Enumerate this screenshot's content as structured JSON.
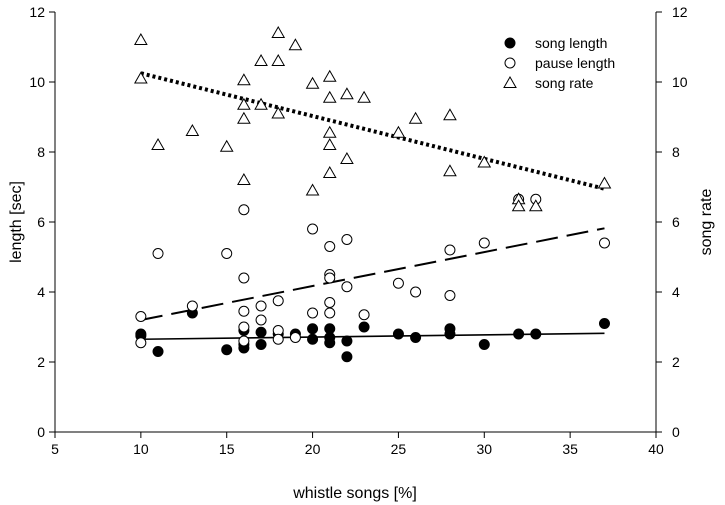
{
  "chart_data": {
    "type": "scatter",
    "title": "",
    "xlabel": "whistle songs [%]",
    "ylabel_left": "length [sec]",
    "ylabel_right": "song rate",
    "xlim": [
      5,
      40
    ],
    "ylim_left": [
      0,
      12
    ],
    "ylim_right": [
      0,
      12
    ],
    "xticks": [
      "5",
      "10",
      "15",
      "20",
      "25",
      "30",
      "35",
      "40"
    ],
    "yticks_left": [
      "0",
      "2",
      "4",
      "6",
      "8",
      "10",
      "12"
    ],
    "yticks_right": [
      "0",
      "2",
      "4",
      "6",
      "8",
      "10",
      "12"
    ],
    "grid": false,
    "legend_position": "top-right",
    "series": [
      {
        "name": "song length",
        "marker": "filled-circle",
        "axis": "left",
        "points": [
          [
            10,
            2.8
          ],
          [
            10,
            2.75
          ],
          [
            11,
            2.3
          ],
          [
            13,
            3.4
          ],
          [
            15,
            2.35
          ],
          [
            16,
            2.4
          ],
          [
            16,
            2.5
          ],
          [
            16,
            2.9
          ],
          [
            17,
            2.85
          ],
          [
            17,
            2.5
          ],
          [
            18,
            2.8
          ],
          [
            19,
            2.8
          ],
          [
            20,
            2.95
          ],
          [
            20,
            2.65
          ],
          [
            21,
            2.95
          ],
          [
            21,
            2.7
          ],
          [
            21,
            2.55
          ],
          [
            22,
            2.6
          ],
          [
            22,
            2.15
          ],
          [
            23,
            3.0
          ],
          [
            25,
            2.8
          ],
          [
            26,
            2.7
          ],
          [
            28,
            2.95
          ],
          [
            28,
            2.8
          ],
          [
            30,
            2.5
          ],
          [
            32,
            2.8
          ],
          [
            33,
            2.8
          ],
          [
            37,
            3.1
          ]
        ],
        "trend": {
          "style": "solid",
          "x": [
            10,
            37
          ],
          "y": [
            2.65,
            2.82
          ]
        }
      },
      {
        "name": "pause length",
        "marker": "open-circle",
        "axis": "left",
        "points": [
          [
            10,
            3.3
          ],
          [
            10,
            2.55
          ],
          [
            11,
            5.1
          ],
          [
            13,
            3.6
          ],
          [
            15,
            5.1
          ],
          [
            16,
            6.35
          ],
          [
            16,
            4.4
          ],
          [
            16,
            3.45
          ],
          [
            16,
            3.0
          ],
          [
            16,
            2.6
          ],
          [
            17,
            3.6
          ],
          [
            17,
            3.2
          ],
          [
            18,
            3.75
          ],
          [
            18,
            2.9
          ],
          [
            18,
            2.65
          ],
          [
            19,
            2.7
          ],
          [
            20,
            5.8
          ],
          [
            20,
            3.4
          ],
          [
            21,
            5.3
          ],
          [
            21,
            4.5
          ],
          [
            21,
            4.4
          ],
          [
            21,
            3.7
          ],
          [
            21,
            3.4
          ],
          [
            22,
            5.5
          ],
          [
            22,
            4.15
          ],
          [
            23,
            3.35
          ],
          [
            25,
            4.25
          ],
          [
            26,
            4.0
          ],
          [
            28,
            5.2
          ],
          [
            28,
            3.9
          ],
          [
            30,
            5.4
          ],
          [
            32,
            6.65
          ],
          [
            33,
            6.65
          ],
          [
            37,
            5.4
          ]
        ],
        "trend": {
          "style": "dashed",
          "x": [
            10,
            37
          ],
          "y": [
            3.2,
            5.82
          ]
        }
      },
      {
        "name": "song rate",
        "marker": "open-triangle",
        "axis": "right",
        "points": [
          [
            10,
            11.2
          ],
          [
            10,
            10.1
          ],
          [
            11,
            8.2
          ],
          [
            13,
            8.6
          ],
          [
            15,
            8.15
          ],
          [
            16,
            10.05
          ],
          [
            16,
            9.35
          ],
          [
            16,
            8.95
          ],
          [
            16,
            7.2
          ],
          [
            17,
            10.6
          ],
          [
            17,
            9.35
          ],
          [
            18,
            11.4
          ],
          [
            18,
            10.6
          ],
          [
            18,
            9.1
          ],
          [
            19,
            11.05
          ],
          [
            20,
            9.95
          ],
          [
            20,
            6.9
          ],
          [
            21,
            10.15
          ],
          [
            21,
            9.55
          ],
          [
            21,
            8.55
          ],
          [
            21,
            8.2
          ],
          [
            21,
            7.4
          ],
          [
            22,
            9.65
          ],
          [
            22,
            7.8
          ],
          [
            23,
            9.55
          ],
          [
            25,
            8.55
          ],
          [
            26,
            8.95
          ],
          [
            28,
            9.05
          ],
          [
            28,
            7.45
          ],
          [
            30,
            7.7
          ],
          [
            32,
            6.65
          ],
          [
            32,
            6.45
          ],
          [
            33,
            6.45
          ],
          [
            37,
            7.1
          ]
        ],
        "trend": {
          "style": "dotted",
          "x": [
            10,
            37
          ],
          "y": [
            10.25,
            6.95
          ]
        }
      }
    ]
  }
}
